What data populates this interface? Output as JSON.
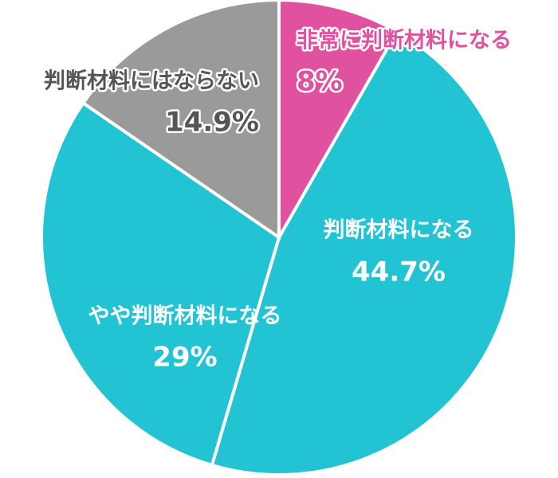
{
  "chart_data": {
    "type": "pie",
    "categories": [
      "非常に判断材料になる",
      "判断材料になる",
      "やや判断材料になる",
      "判断材料にはならない"
    ],
    "values": [
      8,
      44.7,
      29,
      14.9
    ],
    "value_labels": [
      "8%",
      "44.7%",
      "29%",
      "14.9%"
    ],
    "colors": [
      "#e0519f",
      "#22c4d4",
      "#22c4d4",
      "#9a9a9a"
    ],
    "start_angle": 0,
    "direction": "clockwise"
  }
}
